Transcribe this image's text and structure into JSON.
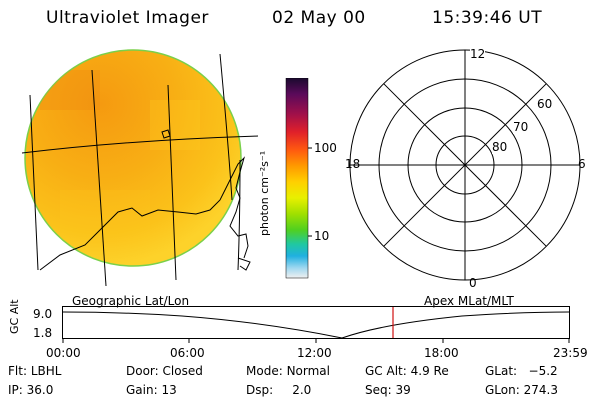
{
  "header": {
    "instrument": "Ultraviolet Imager",
    "date": "02 May 00",
    "time": "15:39:46 UT"
  },
  "colorbar": {
    "unit_label": "photon cm⁻²s⁻¹",
    "ticks": [
      "100",
      "10"
    ],
    "scale": "log",
    "colors": [
      "#1a0a2e",
      "#5a0a5a",
      "#a0104a",
      "#e0202a",
      "#ff5a10",
      "#ff9a00",
      "#ffd000",
      "#e8f000",
      "#a0e000",
      "#50d020",
      "#20c8a0",
      "#20b0e0",
      "#a0d8f0",
      "#f0f0f0"
    ]
  },
  "polar": {
    "mlt_labels": [
      "12",
      "18",
      "6",
      "0"
    ],
    "lat_labels": [
      "60",
      "70",
      "80"
    ]
  },
  "timeline": {
    "y_axis_title": "GC Alt",
    "y_ticks": [
      "9.0",
      "1.8"
    ],
    "left_caption": "Geographic Lat/Lon",
    "right_caption": "Apex MLat/MLT",
    "x_ticks": [
      "00:00",
      "06:00",
      "12:00",
      "18:00",
      "23:59"
    ],
    "marker_color": "#d01010",
    "curve_color": "#000000"
  },
  "status": {
    "filter_label": "Flt:",
    "filter_value": "LBHL",
    "door_label": "Door:",
    "door_value": "Closed",
    "mode_label": "Mode:",
    "mode_value": "Normal",
    "gcalt_label": "GC Alt:",
    "gcalt_value": "4.9 Re",
    "glat_label": "GLat:",
    "glat_value": "−5.2",
    "ip_label": "IP:",
    "ip_value": "36.0",
    "gain_label": "Gain:",
    "gain_value": "13",
    "dsp_label": "Dsp:",
    "dsp_value": "2.0",
    "seq_label": "Seq:",
    "seq_value": "39",
    "glon_label": "GLon:",
    "glon_value": "274.3"
  }
}
